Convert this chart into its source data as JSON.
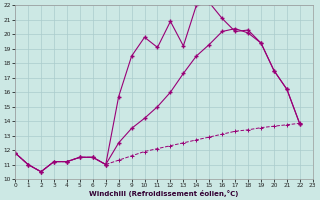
{
  "xlabel": "Windchill (Refroidissement éolien,°C)",
  "background_color": "#cce8e4",
  "grid_color": "#aacccc",
  "line_color": "#990077",
  "xmin": 0,
  "xmax": 23,
  "ymin": 10,
  "ymax": 22,
  "line1_x": [
    0,
    1,
    2,
    3,
    4,
    5,
    6,
    7,
    8,
    9,
    10,
    11,
    12,
    13,
    14,
    15,
    16,
    17,
    18,
    19,
    20,
    21,
    22
  ],
  "line1_y": [
    11.8,
    11.0,
    10.5,
    11.2,
    11.2,
    11.5,
    11.5,
    11.0,
    15.7,
    18.5,
    19.8,
    19.1,
    20.9,
    19.2,
    22.0,
    22.2,
    21.1,
    20.2,
    20.3,
    19.4,
    17.5,
    16.2,
    13.8
  ],
  "line2_x": [
    0,
    1,
    2,
    3,
    4,
    5,
    6,
    7,
    8,
    9,
    10,
    11,
    12,
    13,
    14,
    15,
    16,
    17,
    18,
    19,
    20,
    21,
    22
  ],
  "line2_y": [
    11.8,
    11.0,
    10.5,
    11.2,
    11.2,
    11.5,
    11.5,
    11.0,
    12.5,
    13.5,
    14.2,
    15.0,
    16.0,
    17.3,
    18.5,
    19.3,
    20.2,
    20.4,
    20.1,
    19.4,
    17.5,
    16.2,
    13.8
  ],
  "line3_x": [
    0,
    1,
    2,
    3,
    4,
    5,
    6,
    7,
    8,
    9,
    10,
    11,
    12,
    13,
    14,
    15,
    16,
    17,
    18,
    19,
    20,
    21,
    22
  ],
  "line3_y": [
    11.8,
    11.0,
    10.5,
    11.2,
    11.2,
    11.5,
    11.5,
    11.0,
    11.3,
    11.6,
    11.9,
    12.1,
    12.3,
    12.5,
    12.7,
    12.9,
    13.1,
    13.3,
    13.4,
    13.55,
    13.65,
    13.75,
    13.85
  ]
}
